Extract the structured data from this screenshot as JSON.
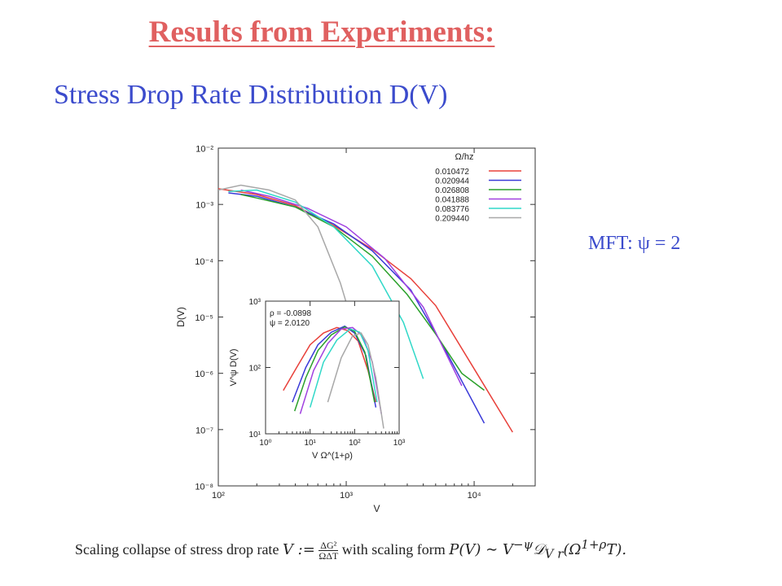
{
  "slide": {
    "title": "Results from Experiments:",
    "subtitle": "Stress Drop Rate Distribution D(V)",
    "note": "MFT: ψ = 2"
  },
  "caption": {
    "prefix": "Scaling collapse of stress drop rate",
    "middle": "with scaling form",
    "formula_v": "V := ΔG²/ΩΔT",
    "formula_p": "P(V) ∼ V^(−ψ) 𝒟_Vr(Ω^(1+ρ)T)."
  },
  "chart_data": [
    {
      "type": "line",
      "xlabel": "V",
      "ylabel": "D(V)",
      "xscale": "log",
      "yscale": "log",
      "xlim": [
        100,
        30000
      ],
      "ylim": [
        1e-08,
        0.01
      ],
      "xticks": [
        "10²",
        "10³",
        "10⁴"
      ],
      "yticks": [
        "10⁻²",
        "10⁻³",
        "10⁻⁴",
        "10⁻⁵",
        "10⁻⁶",
        "10⁻⁷",
        "10⁻⁸"
      ],
      "legend_title": "Ω/hz",
      "legend_position": "top-right",
      "series": [
        {
          "name": "0.010472",
          "color": "#e8403a",
          "x": [
            100,
            200,
            400,
            800,
            1600,
            3200,
            5000,
            10000,
            20000
          ],
          "y": [
            0.0019,
            0.0015,
            0.00095,
            0.00042,
            0.00016,
            4.8e-05,
            1.6e-05,
            1.2e-06,
            9e-08
          ]
        },
        {
          "name": "0.020944",
          "color": "#3a3ad8",
          "x": [
            120,
            200,
            400,
            800,
            1600,
            3200,
            6000,
            12000
          ],
          "y": [
            0.0016,
            0.0014,
            0.0009,
            0.00045,
            0.00015,
            3e-05,
            2.5e-06,
            1.3e-07
          ]
        },
        {
          "name": "0.026808",
          "color": "#2aa02a",
          "x": [
            150,
            200,
            400,
            800,
            1600,
            3000,
            5000,
            8000,
            12000
          ],
          "y": [
            0.0015,
            0.0013,
            0.0009,
            0.0004,
            0.00012,
            2.5e-05,
            5e-06,
            1e-06,
            5e-07
          ]
        },
        {
          "name": "0.041888",
          "color": "#a040e0",
          "x": [
            150,
            250,
            500,
            1000,
            2000,
            4000,
            8000
          ],
          "y": [
            0.0018,
            0.0014,
            0.00085,
            0.0004,
            0.00011,
            1.5e-05,
            6e-07
          ]
        },
        {
          "name": "0.083776",
          "color": "#30d8c8",
          "x": [
            120,
            200,
            400,
            800,
            1600,
            2800,
            4000
          ],
          "y": [
            0.0017,
            0.0018,
            0.0011,
            0.0004,
            8e-05,
            8e-06,
            8e-07
          ]
        },
        {
          "name": "0.209440",
          "color": "#a8a8a8",
          "x": [
            100,
            150,
            250,
            400,
            600,
            900,
            1300,
            1800
          ],
          "y": [
            0.0018,
            0.0022,
            0.0018,
            0.0012,
            0.0004,
            4e-05,
            2.5e-06,
            1.5e-07
          ]
        }
      ]
    },
    {
      "type": "line",
      "inset": true,
      "xlabel": "V Ω^(1+ρ)",
      "ylabel": "V^ψ D(V)",
      "xscale": "log",
      "yscale": "log",
      "xlim": [
        1,
        1000
      ],
      "ylim": [
        10,
        1000
      ],
      "xticks": [
        "10⁰",
        "10¹",
        "10²",
        "10³"
      ],
      "yticks": [
        "10³",
        "10²",
        "10¹"
      ],
      "annotations": [
        "ρ = -0.0898",
        "ψ = 2.0120"
      ],
      "series": [
        {
          "name": "0.010472",
          "color": "#e8403a",
          "x": [
            2.5,
            5,
            10,
            20,
            40,
            70,
            120,
            200,
            300
          ],
          "y": [
            45,
            100,
            220,
            330,
            400,
            360,
            250,
            90,
            30
          ]
        },
        {
          "name": "0.020944",
          "color": "#3a3ad8",
          "x": [
            4,
            8,
            15,
            30,
            60,
            100,
            180,
            300
          ],
          "y": [
            30,
            100,
            220,
            340,
            420,
            330,
            150,
            25
          ]
        },
        {
          "name": "0.026808",
          "color": "#2aa02a",
          "x": [
            4.5,
            8,
            15,
            30,
            60,
            100,
            170,
            280
          ],
          "y": [
            22,
            70,
            180,
            310,
            410,
            350,
            170,
            30
          ]
        },
        {
          "name": "0.041888",
          "color": "#a040e0",
          "x": [
            6,
            12,
            25,
            50,
            90,
            150,
            250,
            400
          ],
          "y": [
            20,
            90,
            230,
            380,
            400,
            300,
            120,
            20
          ]
        },
        {
          "name": "0.083776",
          "color": "#30d8c8",
          "x": [
            10,
            20,
            40,
            80,
            130,
            200,
            320
          ],
          "y": [
            25,
            120,
            260,
            380,
            340,
            180,
            30
          ]
        },
        {
          "name": "0.209440",
          "color": "#a8a8a8",
          "x": [
            25,
            50,
            90,
            140,
            200,
            300,
            450
          ],
          "y": [
            30,
            140,
            300,
            330,
            220,
            70,
            12
          ]
        }
      ]
    }
  ]
}
